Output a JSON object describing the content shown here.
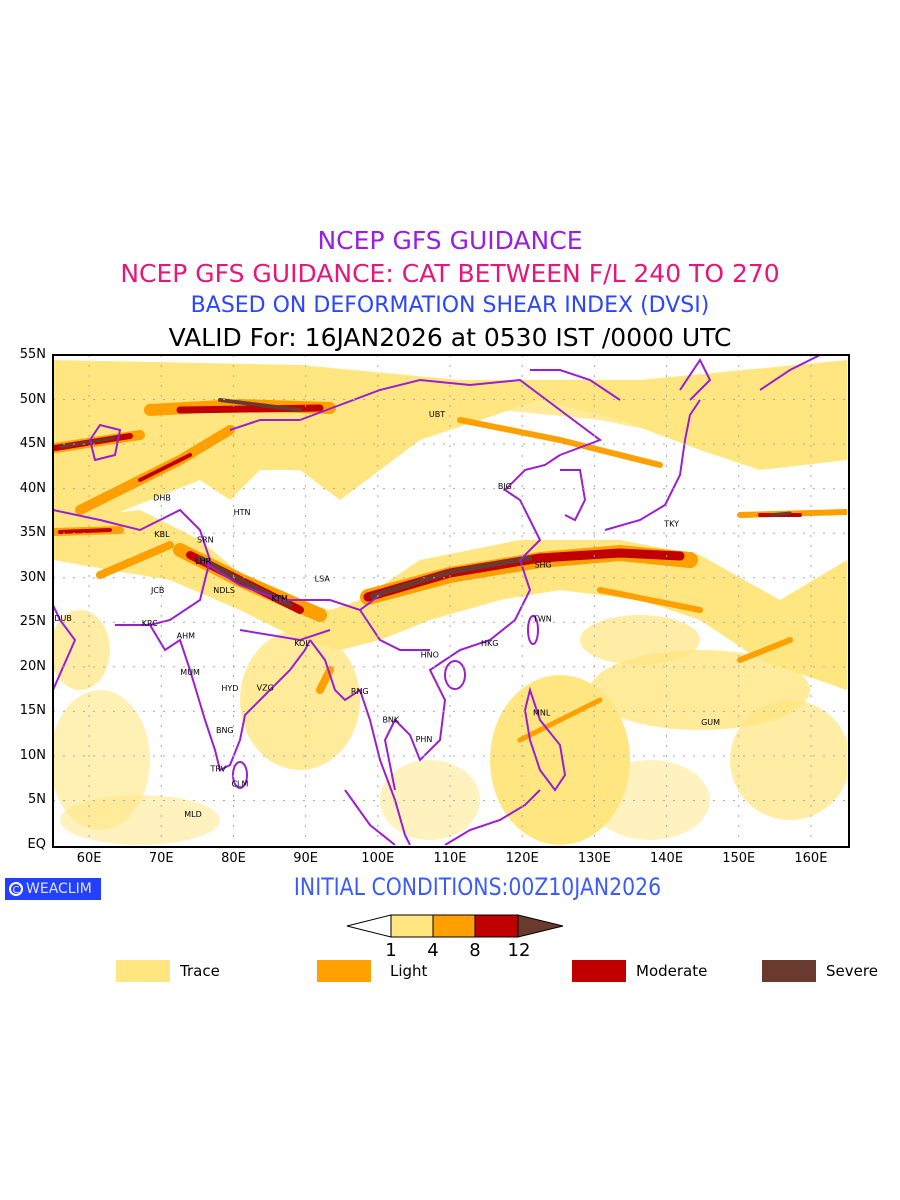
{
  "titles": {
    "line1": "NCEP GFS GUIDANCE",
    "line2": "NCEP GFS GUIDANCE: CAT BETWEEN F/L 240 TO 270",
    "line3": "BASED ON DEFORMATION SHEAR INDEX (DVSI)",
    "line4": "VALID For: 16JAN2026 at 0530 IST /0000 UTC"
  },
  "axes": {
    "lat_labels": [
      "55N",
      "50N",
      "45N",
      "40N",
      "35N",
      "30N",
      "25N",
      "20N",
      "15N",
      "10N",
      "5N",
      "EQ"
    ],
    "lon_labels": [
      "60E",
      "70E",
      "80E",
      "90E",
      "100E",
      "110E",
      "120E",
      "130E",
      "140E",
      "150E",
      "160E"
    ],
    "lon_range": [
      55,
      165
    ],
    "lat_range": [
      0,
      55
    ]
  },
  "cities": [
    {
      "code": "UBT",
      "lon": 108.2,
      "lat": 48.4
    },
    {
      "code": "BJG",
      "lon": 117.6,
      "lat": 40.3
    },
    {
      "code": "DHB",
      "lon": 70.1,
      "lat": 39.0
    },
    {
      "code": "HTN",
      "lon": 81.2,
      "lat": 37.4
    },
    {
      "code": "KBL",
      "lon": 70.1,
      "lat": 34.9
    },
    {
      "code": "SRN",
      "lon": 76.1,
      "lat": 34.3
    },
    {
      "code": "TKY",
      "lon": 140.7,
      "lat": 36.1
    },
    {
      "code": "LHR",
      "lon": 75.8,
      "lat": 31.9
    },
    {
      "code": "SHG",
      "lon": 122.9,
      "lat": 31.5
    },
    {
      "code": "LSA",
      "lon": 92.3,
      "lat": 29.9
    },
    {
      "code": "JCB",
      "lon": 69.5,
      "lat": 28.6
    },
    {
      "code": "NDLS",
      "lon": 78.7,
      "lat": 28.6
    },
    {
      "code": "KTM",
      "lon": 86.4,
      "lat": 27.7
    },
    {
      "code": "DUB",
      "lon": 56.4,
      "lat": 25.5
    },
    {
      "code": "TWN",
      "lon": 122.8,
      "lat": 25.4
    },
    {
      "code": "KRC",
      "lon": 68.4,
      "lat": 24.9
    },
    {
      "code": "AHM",
      "lon": 73.4,
      "lat": 23.5
    },
    {
      "code": "HKG",
      "lon": 115.5,
      "lat": 22.7
    },
    {
      "code": "KOL",
      "lon": 89.5,
      "lat": 22.7
    },
    {
      "code": "HNO",
      "lon": 107.2,
      "lat": 21.4
    },
    {
      "code": "MUM",
      "lon": 74.0,
      "lat": 19.4
    },
    {
      "code": "HYD",
      "lon": 79.5,
      "lat": 17.6
    },
    {
      "code": "VZG",
      "lon": 84.4,
      "lat": 17.7
    },
    {
      "code": "RNG",
      "lon": 97.5,
      "lat": 17.3
    },
    {
      "code": "GUM",
      "lon": 146.1,
      "lat": 13.8
    },
    {
      "code": "MNL",
      "lon": 122.7,
      "lat": 14.9
    },
    {
      "code": "BNK",
      "lon": 101.8,
      "lat": 14.1
    },
    {
      "code": "BNG",
      "lon": 78.8,
      "lat": 12.9
    },
    {
      "code": "PHN",
      "lon": 106.4,
      "lat": 11.9
    },
    {
      "code": "TRV",
      "lon": 77.9,
      "lat": 8.6
    },
    {
      "code": "CLM",
      "lon": 80.9,
      "lat": 6.9
    },
    {
      "code": "MLD",
      "lon": 74.4,
      "lat": 3.5
    }
  ],
  "logo": "WEACLIM",
  "initial_conditions": "INITIAL CONDITIONS:00Z10JAN2026",
  "colorbar": {
    "ticks": [
      "1",
      "4",
      "8",
      "12"
    ],
    "colors": {
      "trace": "#ffe680",
      "light": "#ffa000",
      "moderate": "#c00000",
      "severe": "#6b3a2f"
    }
  },
  "legend": [
    {
      "label": "Trace",
      "color": "#ffe680"
    },
    {
      "label": "Light",
      "color": "#ffa000"
    },
    {
      "label": "Moderate",
      "color": "#c00000"
    },
    {
      "label": "Severe",
      "color": "#6b3a2f"
    }
  ],
  "colors": {
    "coastline": "#9b1fd0",
    "grid": "#aaaaaa"
  }
}
